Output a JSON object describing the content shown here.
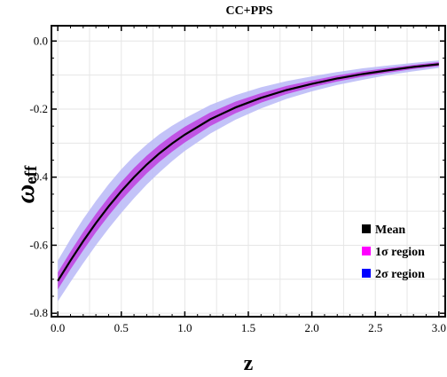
{
  "chart_data": {
    "type": "line",
    "title": "CC+PPS",
    "xlabel": "z",
    "ylabel": "ω",
    "ylabel_sub": "eff",
    "xlim": [
      -0.05,
      3.05
    ],
    "ylim": [
      -0.81,
      0.045
    ],
    "x_ticks": [
      0.0,
      0.5,
      1.0,
      1.5,
      2.0,
      2.5,
      3.0
    ],
    "x_tick_labels": [
      "0.0",
      "0.5",
      "1.0",
      "1.5",
      "2.0",
      "2.5",
      "3.0"
    ],
    "y_ticks": [
      0.0,
      -0.2,
      -0.4,
      -0.6,
      -0.8
    ],
    "y_tick_labels": [
      "0.0",
      "-0.2",
      "-0.4",
      "-0.6",
      "-0.8"
    ],
    "grid": true,
    "legend_position": "lower-right",
    "series": [
      {
        "name": "Mean",
        "color": "#000000",
        "x": [
          0.0,
          0.1,
          0.2,
          0.3,
          0.4,
          0.5,
          0.6,
          0.7,
          0.8,
          0.9,
          1.0,
          1.2,
          1.4,
          1.6,
          1.8,
          2.0,
          2.2,
          2.4,
          2.6,
          2.8,
          3.0
        ],
        "y": [
          -0.705,
          -0.645,
          -0.588,
          -0.535,
          -0.486,
          -0.441,
          -0.4,
          -0.363,
          -0.33,
          -0.301,
          -0.275,
          -0.23,
          -0.195,
          -0.167,
          -0.144,
          -0.126,
          -0.11,
          -0.097,
          -0.086,
          -0.076,
          -0.068
        ]
      },
      {
        "name": "1σ region",
        "color": "#ff00ff",
        "x": [
          0.0,
          0.1,
          0.2,
          0.3,
          0.4,
          0.5,
          0.6,
          0.7,
          0.8,
          0.9,
          1.0,
          1.2,
          1.4,
          1.6,
          1.8,
          2.0,
          2.2,
          2.4,
          2.6,
          2.8,
          3.0
        ],
        "lower": [
          -0.73,
          -0.671,
          -0.615,
          -0.562,
          -0.513,
          -0.468,
          -0.427,
          -0.389,
          -0.355,
          -0.325,
          -0.298,
          -0.25,
          -0.212,
          -0.181,
          -0.156,
          -0.136,
          -0.119,
          -0.105,
          -0.093,
          -0.082,
          -0.074
        ],
        "upper": [
          -0.68,
          -0.619,
          -0.561,
          -0.508,
          -0.459,
          -0.414,
          -0.373,
          -0.337,
          -0.305,
          -0.277,
          -0.252,
          -0.21,
          -0.178,
          -0.153,
          -0.132,
          -0.116,
          -0.101,
          -0.089,
          -0.079,
          -0.07,
          -0.062
        ]
      },
      {
        "name": "2σ region",
        "color": "#0000ff",
        "x": [
          0.0,
          0.1,
          0.2,
          0.3,
          0.4,
          0.5,
          0.6,
          0.7,
          0.8,
          0.9,
          1.0,
          1.2,
          1.4,
          1.6,
          1.8,
          2.0,
          2.2,
          2.4,
          2.6,
          2.8,
          3.0
        ],
        "lower": [
          -0.765,
          -0.708,
          -0.653,
          -0.6,
          -0.551,
          -0.505,
          -0.462,
          -0.422,
          -0.386,
          -0.353,
          -0.323,
          -0.272,
          -0.231,
          -0.198,
          -0.17,
          -0.148,
          -0.129,
          -0.114,
          -0.1,
          -0.089,
          -0.079
        ],
        "upper": [
          -0.645,
          -0.582,
          -0.523,
          -0.47,
          -0.421,
          -0.377,
          -0.338,
          -0.304,
          -0.274,
          -0.249,
          -0.227,
          -0.188,
          -0.159,
          -0.136,
          -0.118,
          -0.104,
          -0.091,
          -0.08,
          -0.072,
          -0.064,
          -0.057
        ]
      }
    ],
    "legend": [
      {
        "label": "Mean",
        "color": "#000000"
      },
      {
        "label": "1σ region",
        "color": "#ff00ff"
      },
      {
        "label": "2σ region",
        "color": "#0000ff"
      }
    ]
  }
}
